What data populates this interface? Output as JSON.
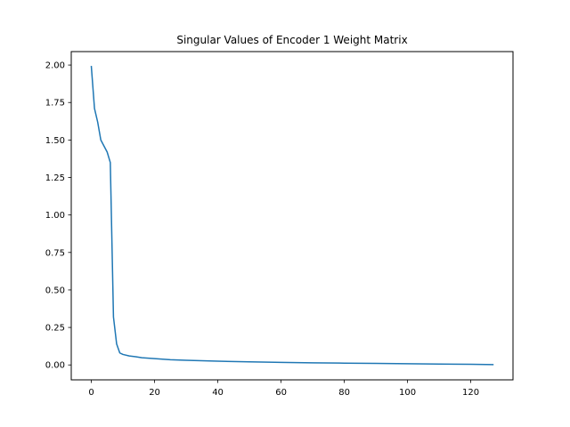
{
  "chart_data": {
    "type": "line",
    "title": "Singular Values of Encoder 1 Weight Matrix",
    "xlabel": "",
    "ylabel": "",
    "xlim": [
      -6.35,
      133.35
    ],
    "ylim": [
      -0.0995,
      2.0895
    ],
    "xticks": [
      0,
      20,
      40,
      60,
      80,
      100,
      120
    ],
    "xtick_labels": [
      "0",
      "20",
      "40",
      "60",
      "80",
      "100",
      "120"
    ],
    "yticks": [
      0.0,
      0.25,
      0.5,
      0.75,
      1.0,
      1.25,
      1.5,
      1.75,
      2.0
    ],
    "ytick_labels": [
      "0.00",
      "0.25",
      "0.50",
      "0.75",
      "1.00",
      "1.25",
      "1.50",
      "1.75",
      "2.00"
    ],
    "grid": false,
    "series": [
      {
        "color": "#1f77b4",
        "x": [
          0,
          1,
          2,
          3,
          4,
          5,
          6,
          7,
          8,
          9,
          10,
          12,
          14,
          16,
          20,
          25,
          30,
          40,
          50,
          60,
          70,
          80,
          90,
          100,
          110,
          120,
          127
        ],
        "y": [
          1.99,
          1.71,
          1.62,
          1.5,
          1.46,
          1.42,
          1.35,
          0.32,
          0.14,
          0.08,
          0.07,
          0.06,
          0.055,
          0.048,
          0.042,
          0.035,
          0.031,
          0.025,
          0.021,
          0.017,
          0.014,
          0.012,
          0.01,
          0.008,
          0.006,
          0.004,
          0.002
        ]
      }
    ]
  }
}
